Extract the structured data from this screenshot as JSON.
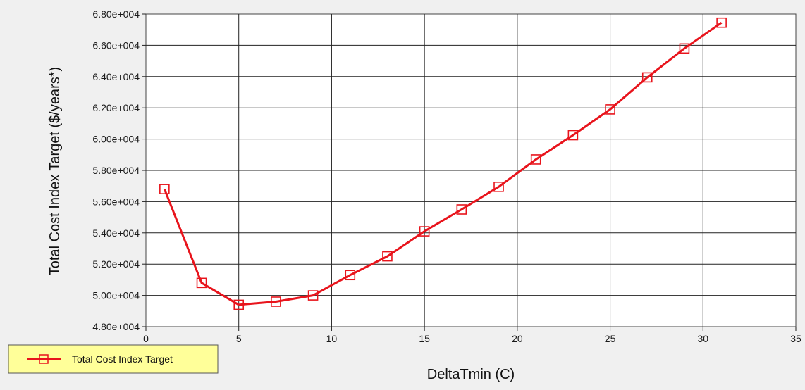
{
  "chart_data": {
    "type": "line",
    "xlabel": "DeltaTmin (C)",
    "ylabel": "Total Cost Index Target ($/years*)",
    "xlim": [
      0,
      35
    ],
    "ylim": [
      48000,
      68000
    ],
    "x_ticks": [
      0,
      5,
      10,
      15,
      20,
      25,
      30,
      35
    ],
    "x_tick_labels": [
      "0",
      "5",
      "10",
      "15",
      "20",
      "25",
      "30",
      "35"
    ],
    "y_ticks": [
      48000,
      50000,
      52000,
      54000,
      56000,
      58000,
      60000,
      62000,
      64000,
      66000,
      68000
    ],
    "y_tick_labels": [
      "4.80e+004",
      "5.00e+004",
      "5.20e+004",
      "5.40e+004",
      "5.60e+004",
      "5.80e+004",
      "6.00e+004",
      "6.20e+004",
      "6.40e+004",
      "6.60e+004",
      "6.80e+004"
    ],
    "grid": true,
    "legend_position": "bottom-left",
    "series": [
      {
        "name": "Total Cost Index Target",
        "color": "#e8141c",
        "marker": "open-square",
        "x": [
          1,
          3,
          5,
          7,
          9,
          11,
          13,
          15,
          17,
          19,
          21,
          23,
          25,
          27,
          29,
          31
        ],
        "y": [
          56800,
          50800,
          49400,
          49600,
          50000,
          51300,
          52500,
          54100,
          55500,
          56950,
          58700,
          60250,
          61900,
          63950,
          65800,
          67450
        ]
      }
    ]
  }
}
